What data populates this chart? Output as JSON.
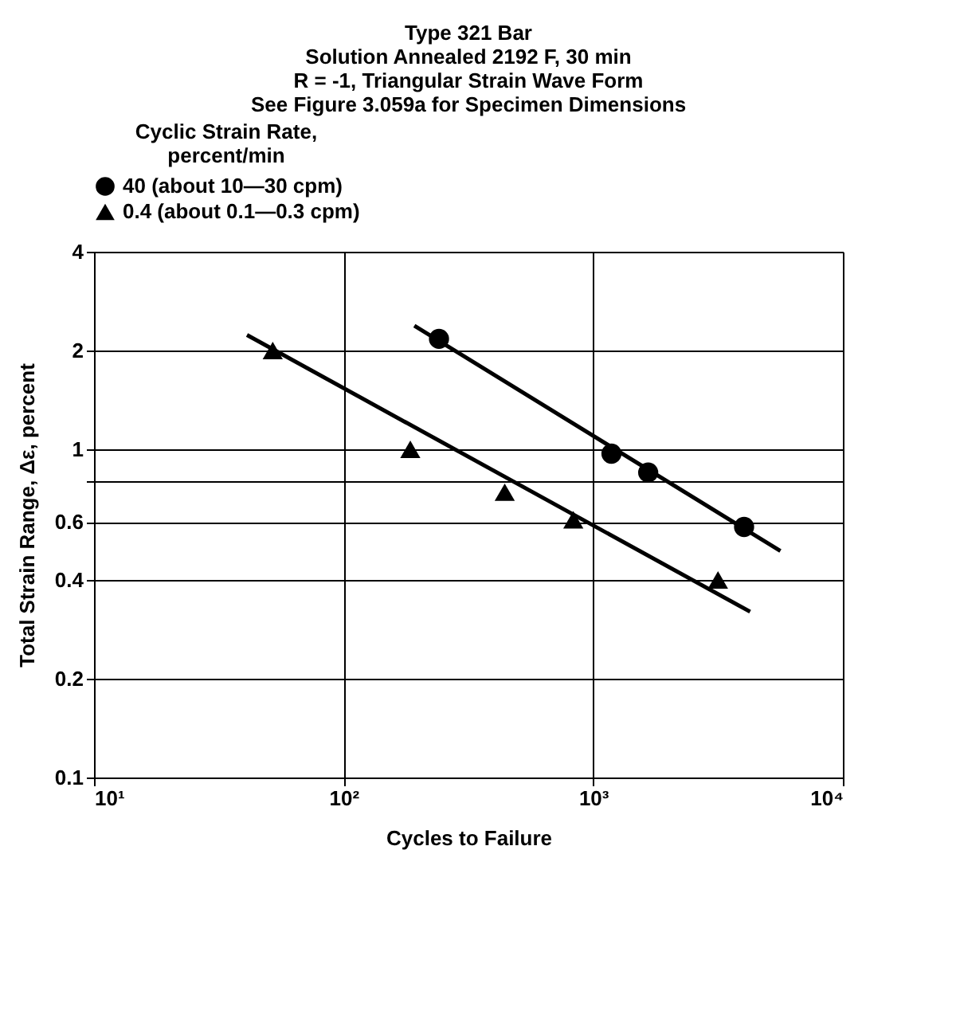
{
  "chart_data": {
    "type": "scatter",
    "title": "Type 321 Bar\nSolution Annealed 2192 F, 30 min\nR = -1, Triangular Strain Wave Form\nSee Figure 3.059a for Specimen Dimensions",
    "xlabel": "Cycles to Failure",
    "ylabel": "Total Strain Range, Δε, percent",
    "legend_title": "Cyclic Strain Rate,\npercent/min",
    "series": [
      {
        "name": "40 (about 10—30 cpm)",
        "color": "#000000",
        "marker": "circle",
        "x": [
          241,
          1183,
          1660,
          4020
        ],
        "values": [
          2.17,
          0.97,
          0.85,
          0.58
        ]
      },
      {
        "name": "0.4 (about 0.1—0.3 cpm)",
        "color": "#000000",
        "marker": "triangle",
        "x": [
          52,
          185,
          442,
          832,
          3160
        ],
        "values": [
          2.0,
          1.0,
          0.74,
          0.61,
          0.4
        ]
      },
      {
        "type": "line",
        "color": "#000000",
        "marker": "none",
        "line_style": "solid",
        "x": [
          192,
          5620
        ],
        "values": [
          2.38,
          0.49
        ]
      },
      {
        "type": "line",
        "color": "#000000",
        "marker": "none",
        "line_style": "solid",
        "x": [
          41,
          4250
        ],
        "values": [
          2.23,
          0.32
        ]
      }
    ],
    "log": "xy",
    "xlim": [
      10,
      10000
    ],
    "xticks": [
      {
        "value": 10,
        "label": "10¹"
      },
      {
        "value": 100,
        "label": "10²"
      },
      {
        "value": 1000,
        "label": "10³"
      },
      {
        "value": 10000,
        "label": "10⁴"
      }
    ],
    "ylim": [
      0.1,
      4
    ],
    "yticks": [
      0.1,
      0.2,
      0.4,
      0.6,
      {
        "value": 0.8,
        "label": null
      },
      1,
      2,
      4
    ],
    "grid": true,
    "legend": "top"
  }
}
